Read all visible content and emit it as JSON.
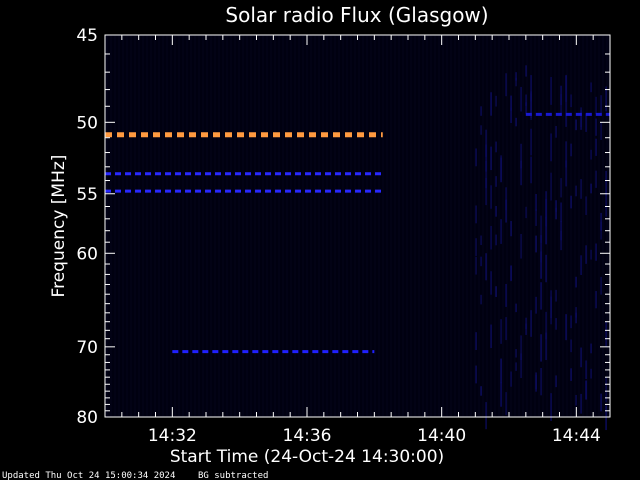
{
  "chart_data": {
    "type": "heatmap",
    "title": "Solar radio Flux (Glasgow)",
    "xlabel": "Start Time (24-Oct-24 14:30:00)",
    "ylabel": "Frequency [MHz]",
    "x_unit": "time (HH:MM)",
    "xlim": [
      "14:30:00",
      "14:45:00"
    ],
    "ylim": [
      45,
      80
    ],
    "y_scale": "reciprocal",
    "x_ticks": [
      "14:32",
      "14:36",
      "14:40",
      "14:44"
    ],
    "y_ticks": [
      45,
      50,
      55,
      60,
      70,
      80
    ],
    "background_color": "#000010",
    "features": [
      {
        "kind": "horizontal-band",
        "frequency_mhz": 50.8,
        "start": "14:30:00",
        "end": "14:38:15",
        "color": "#ff9a40"
      },
      {
        "kind": "horizontal-band",
        "frequency_mhz": 53.5,
        "start": "14:30:00",
        "end": "14:38:15",
        "color": "#2828ff"
      },
      {
        "kind": "horizontal-band",
        "frequency_mhz": 54.8,
        "start": "14:30:00",
        "end": "14:38:15",
        "color": "#2828ff"
      },
      {
        "kind": "horizontal-band",
        "frequency_mhz": 70.6,
        "start": "14:32:00",
        "end": "14:38:00",
        "color": "#2020ff"
      },
      {
        "kind": "horizontal-band",
        "frequency_mhz": 49.5,
        "start": "14:42:30",
        "end": "14:45:00",
        "color": "#1818d0"
      }
    ],
    "noise_region": {
      "start": "14:41:00",
      "end": "14:45:00",
      "color": "#0c0c60"
    }
  },
  "footer": {
    "updated": "Updated Thu Oct 24 15:00:34 2024",
    "bg_note": "BG subtracted"
  }
}
